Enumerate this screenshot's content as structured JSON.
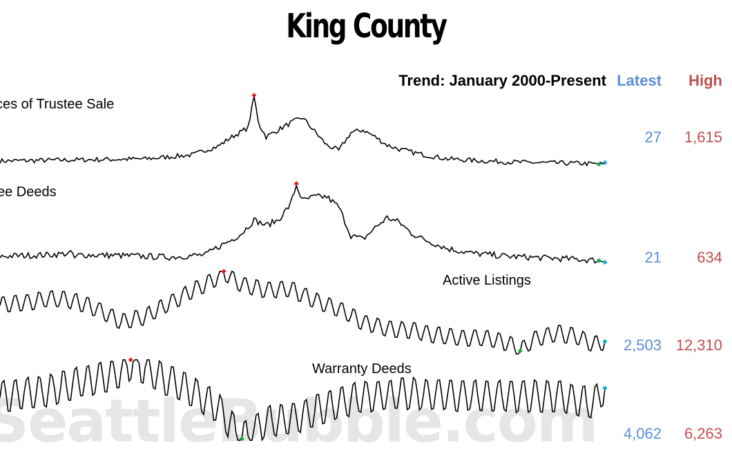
{
  "title": "King County",
  "header": {
    "trend_label": "Trend: January 2000-Present",
    "latest_label": "Latest",
    "high_label": "High"
  },
  "watermark": "SeattleBubble.com",
  "colors": {
    "line": "#000000",
    "high_marker": "#e41a1c",
    "low_marker": "#1aa34a",
    "latest_marker": "#1aa3d4",
    "latest_text": "#5b8fd4",
    "high_text": "#c0504d"
  },
  "chart_data": [
    {
      "type": "line",
      "name": "Notices of Trustee Sale",
      "label_visible": "ces of Trustee Sale",
      "latest": "27",
      "high": "1,615",
      "profile": [
        [
          0,
          0.07
        ],
        [
          4,
          0.08
        ],
        [
          8,
          0.09
        ],
        [
          12,
          0.1
        ],
        [
          14,
          0.13
        ],
        [
          16,
          0.16
        ],
        [
          17,
          0.23
        ],
        [
          18,
          0.28
        ],
        [
          19,
          0.4
        ],
        [
          20,
          0.5
        ],
        [
          20.5,
          0.55
        ],
        [
          21,
          1.0
        ],
        [
          21.4,
          0.6
        ],
        [
          22,
          0.42
        ],
        [
          23,
          0.52
        ],
        [
          24,
          0.62
        ],
        [
          25,
          0.7
        ],
        [
          26,
          0.5
        ],
        [
          27,
          0.3
        ],
        [
          28,
          0.22
        ],
        [
          29,
          0.48
        ],
        [
          30,
          0.52
        ],
        [
          31,
          0.42
        ],
        [
          32,
          0.3
        ],
        [
          33,
          0.24
        ],
        [
          34,
          0.2
        ],
        [
          35,
          0.16
        ],
        [
          36,
          0.13
        ],
        [
          37,
          0.1
        ],
        [
          40,
          0.07
        ],
        [
          43,
          0.05
        ],
        [
          46,
          0.04
        ],
        [
          48,
          0.035
        ],
        [
          50,
          0.02
        ]
      ],
      "noise": 0.035,
      "high_pos": 21,
      "low_pos": 49.5
    },
    {
      "type": "line",
      "name": "Trustee Deeds",
      "label_visible": "ee Deeds",
      "latest": "21",
      "high": "634",
      "profile": [
        [
          0,
          0.08
        ],
        [
          4,
          0.1
        ],
        [
          6,
          0.12
        ],
        [
          6.2,
          0.04
        ],
        [
          6.5,
          0.1
        ],
        [
          10,
          0.09
        ],
        [
          14,
          0.07
        ],
        [
          17,
          0.1
        ],
        [
          18,
          0.2
        ],
        [
          19,
          0.28
        ],
        [
          20,
          0.38
        ],
        [
          21,
          0.55
        ],
        [
          22,
          0.48
        ],
        [
          23,
          0.55
        ],
        [
          24,
          0.75
        ],
        [
          24.5,
          1.0
        ],
        [
          25,
          0.8
        ],
        [
          26,
          0.85
        ],
        [
          27,
          0.85
        ],
        [
          28,
          0.72
        ],
        [
          29,
          0.35
        ],
        [
          30,
          0.3
        ],
        [
          31,
          0.45
        ],
        [
          32,
          0.58
        ],
        [
          33,
          0.52
        ],
        [
          34,
          0.38
        ],
        [
          35,
          0.3
        ],
        [
          37,
          0.18
        ],
        [
          39,
          0.12
        ],
        [
          42,
          0.08
        ],
        [
          45,
          0.06
        ],
        [
          48,
          0.04
        ],
        [
          50,
          0.02
        ]
      ],
      "noise": 0.04,
      "high_pos": 24.5,
      "low_pos": 49.5
    },
    {
      "type": "line",
      "name": "Active Listings",
      "label_visible": "Active Listings",
      "latest": "2,503",
      "high": "12,310",
      "profile": [
        [
          0,
          0.6
        ],
        [
          2,
          0.62
        ],
        [
          4,
          0.68
        ],
        [
          6,
          0.65
        ],
        [
          8,
          0.55
        ],
        [
          10,
          0.38
        ],
        [
          12,
          0.45
        ],
        [
          14,
          0.62
        ],
        [
          16,
          0.78
        ],
        [
          18,
          0.95
        ],
        [
          18.5,
          1.0
        ],
        [
          20,
          0.85
        ],
        [
          22,
          0.78
        ],
        [
          24,
          0.8
        ],
        [
          26,
          0.65
        ],
        [
          28,
          0.55
        ],
        [
          30,
          0.38
        ],
        [
          32,
          0.3
        ],
        [
          34,
          0.28
        ],
        [
          36,
          0.22
        ],
        [
          38,
          0.18
        ],
        [
          40,
          0.18
        ],
        [
          42,
          0.12
        ],
        [
          43,
          0.02
        ],
        [
          44,
          0.15
        ],
        [
          46,
          0.25
        ],
        [
          48,
          0.18
        ],
        [
          49,
          0.1
        ],
        [
          50,
          0.13
        ]
      ],
      "season": 0.11,
      "noise": 0.01,
      "high_pos": 18.5,
      "low_pos": 43
    },
    {
      "type": "line",
      "name": "Warranty Deeds",
      "label_visible": "Warranty Deeds",
      "latest": "4,062",
      "high": "6,263",
      "profile": [
        [
          0,
          0.55
        ],
        [
          4,
          0.62
        ],
        [
          8,
          0.78
        ],
        [
          10,
          0.85
        ],
        [
          11,
          1.0
        ],
        [
          13,
          0.82
        ],
        [
          16,
          0.6
        ],
        [
          18,
          0.4
        ],
        [
          19,
          0.2
        ],
        [
          20,
          0.0
        ],
        [
          22,
          0.22
        ],
        [
          24,
          0.25
        ],
        [
          26,
          0.35
        ],
        [
          28,
          0.45
        ],
        [
          30,
          0.55
        ],
        [
          34,
          0.58
        ],
        [
          38,
          0.56
        ],
        [
          42,
          0.55
        ],
        [
          46,
          0.55
        ],
        [
          49,
          0.45
        ],
        [
          50,
          0.65
        ]
      ],
      "season": 0.22,
      "noise": 0.02,
      "high_pos": 10.8,
      "low_pos": 20
    }
  ]
}
